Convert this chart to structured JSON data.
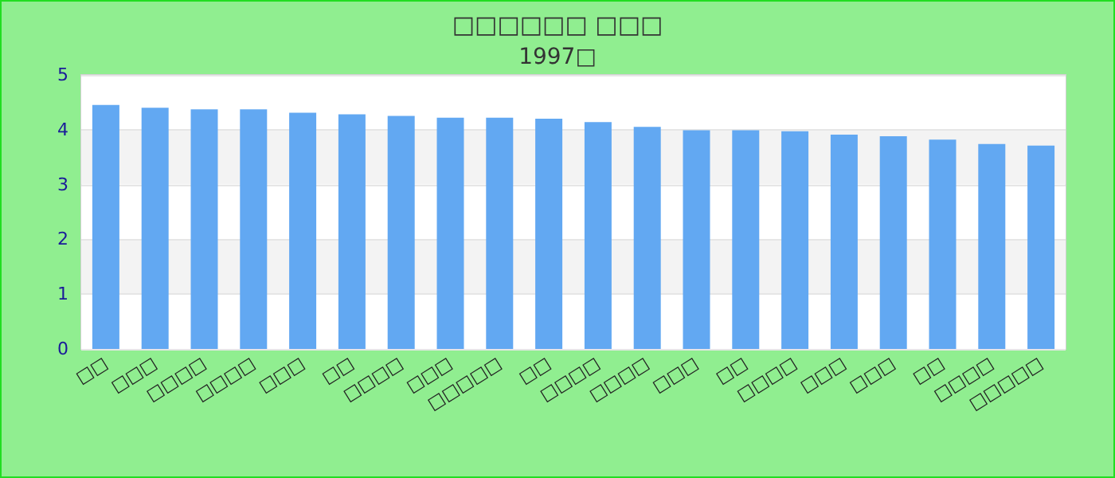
{
  "chart_data": {
    "type": "bar",
    "title": "□□□□□□ □□□",
    "subtitle": "1997□",
    "categories": [
      "□□",
      "□□□",
      "□□□□",
      "□□□□",
      "□□□",
      "□□",
      "□□□□",
      "□□□",
      "□□□□□",
      "□□",
      "□□□□",
      "□□□□",
      "□□□",
      "□□",
      "□□□□",
      "□□□",
      "□□□",
      "□□",
      "□□□□",
      "□□□□□"
    ],
    "values": [
      4.45,
      4.4,
      4.37,
      4.37,
      4.31,
      4.28,
      4.25,
      4.22,
      4.22,
      4.2,
      4.14,
      4.05,
      3.99,
      3.99,
      3.97,
      3.91,
      3.88,
      3.82,
      3.74,
      3.71
    ],
    "color": "#62a8f2",
    "ylim": [
      0,
      5
    ],
    "yticks": [
      0,
      1,
      2,
      3,
      4,
      5
    ],
    "grid": "y"
  }
}
